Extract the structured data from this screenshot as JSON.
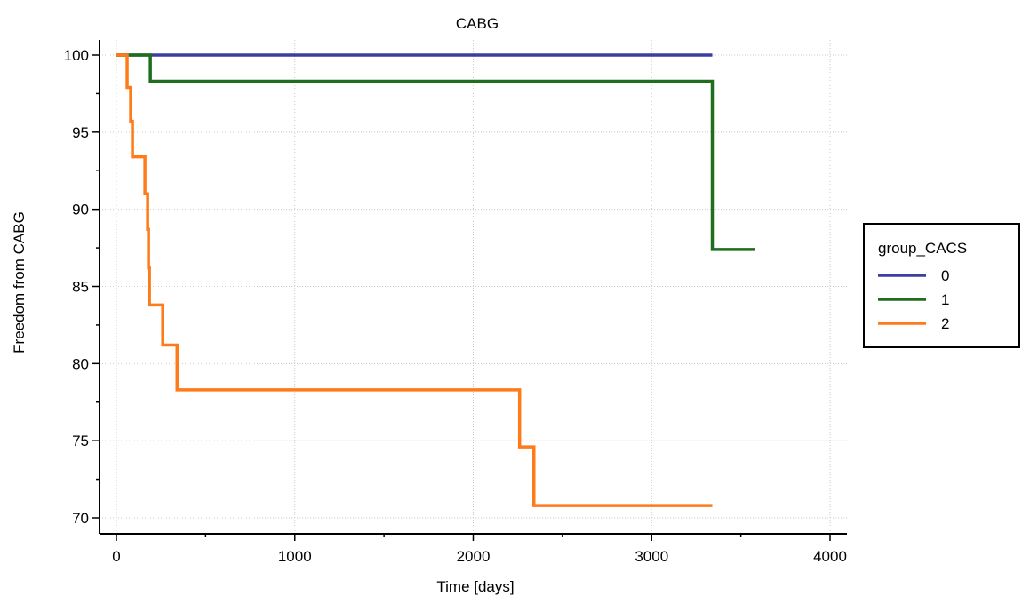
{
  "chart_data": {
    "type": "line",
    "title": "CABG",
    "xlabel": "Time [days]",
    "ylabel": "Freedom from CABG",
    "xlim": [
      0,
      4000
    ],
    "ylim": [
      70,
      100
    ],
    "xticks": [
      0,
      1000,
      2000,
      3000,
      4000
    ],
    "yticks": [
      70,
      75,
      80,
      85,
      90,
      95,
      100
    ],
    "grid": true,
    "step": true,
    "legend": {
      "title": "group_CACS",
      "placement": "right"
    },
    "series": [
      {
        "name": "0",
        "color": "#3b3fa0",
        "x": [
          0,
          3340
        ],
        "y": [
          100,
          100
        ]
      },
      {
        "name": "1",
        "color": "#1e6e1e",
        "x": [
          0,
          190,
          3340,
          3580
        ],
        "y": [
          100,
          98.3,
          87.4,
          87.4
        ]
      },
      {
        "name": "2",
        "color": "#ff7b1a",
        "x": [
          0,
          60,
          80,
          90,
          160,
          175,
          180,
          185,
          190,
          260,
          340,
          2260,
          2340,
          3340
        ],
        "y": [
          100,
          97.9,
          95.7,
          93.4,
          91.0,
          88.7,
          86.2,
          83.8,
          83.8,
          81.2,
          78.3,
          74.6,
          70.8,
          70.8
        ]
      }
    ]
  }
}
